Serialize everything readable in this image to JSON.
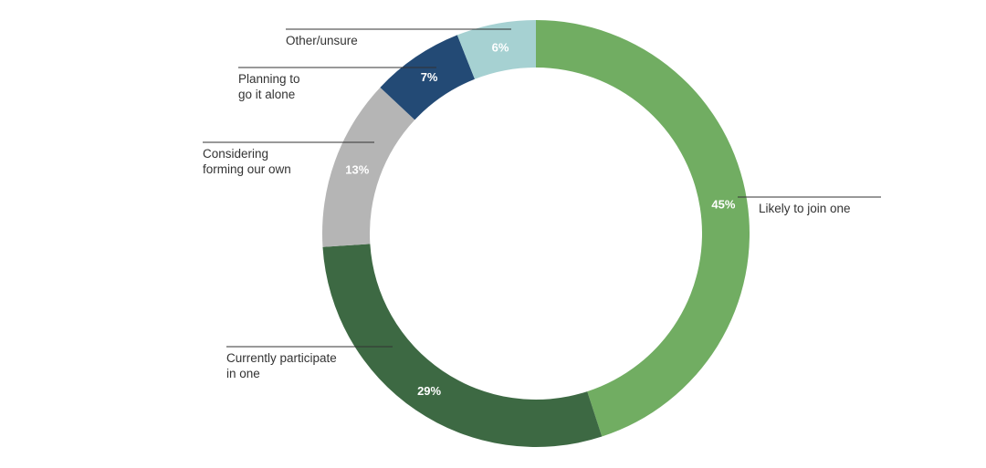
{
  "chart_data": {
    "type": "pie",
    "variant": "donut",
    "title": "",
    "categories": [
      "Likely to join one",
      "Currently participate in one",
      "Considering forming our own",
      "Planning to go it alone",
      "Other/unsure"
    ],
    "label_lines": [
      [
        "Likely to join one"
      ],
      [
        "Currently participate",
        "in one"
      ],
      [
        "Considering",
        "forming our own"
      ],
      [
        "Planning to",
        "go it alone"
      ],
      [
        "Other/unsure"
      ]
    ],
    "values": [
      45,
      29,
      13,
      7,
      6
    ],
    "value_labels": [
      "45%",
      "29%",
      "13%",
      "7%",
      "6%"
    ],
    "colors": [
      "#71ad62",
      "#3d6943",
      "#b5b5b5",
      "#234a75",
      "#a6d1d2"
    ],
    "start": "top",
    "direction": "clockwise",
    "legend": "none"
  }
}
